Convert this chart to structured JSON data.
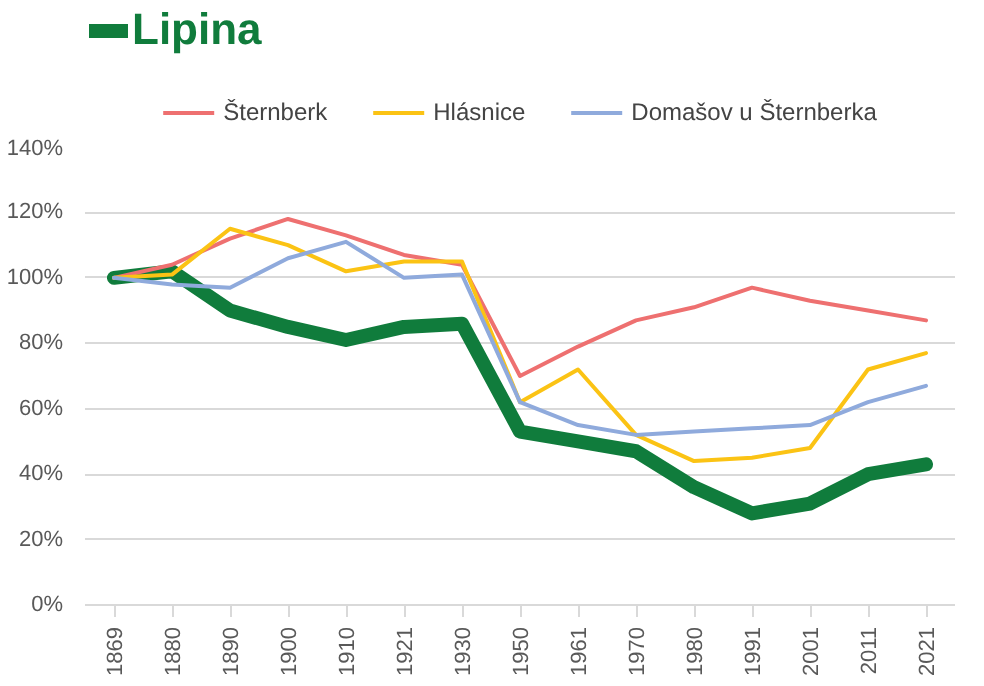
{
  "chart_data": {
    "type": "line",
    "categories": [
      "1869",
      "1880",
      "1890",
      "1900",
      "1910",
      "1921",
      "1930",
      "1950",
      "1961",
      "1970",
      "1980",
      "1991",
      "2001",
      "2011",
      "2021"
    ],
    "series": [
      {
        "name": "Lipina",
        "color": "#107c3c",
        "values": [
          100,
          102,
          90,
          85,
          81,
          85,
          86,
          53,
          50,
          47,
          36,
          28,
          31,
          40,
          43
        ]
      },
      {
        "name": "Šternberk",
        "color": "#ee7070",
        "values": [
          100,
          104,
          112,
          118,
          113,
          107,
          104,
          70,
          79,
          87,
          91,
          97,
          93,
          90,
          87
        ]
      },
      {
        "name": "Hlásnice",
        "color": "#fbc314",
        "values": [
          100,
          101,
          115,
          110,
          102,
          105,
          105,
          62,
          72,
          52,
          44,
          45,
          48,
          72,
          77
        ]
      },
      {
        "name": "Domašov u Šternberka",
        "color": "#8faadc",
        "values": [
          100,
          98,
          97,
          106,
          111,
          100,
          101,
          62,
          55,
          52,
          53,
          54,
          55,
          62,
          67
        ]
      }
    ],
    "ylim": [
      0,
      140
    ],
    "yticks": [
      {
        "value": 0,
        "label": "0%"
      },
      {
        "value": 20,
        "label": "20%"
      },
      {
        "value": 40,
        "label": "40%"
      },
      {
        "value": 60,
        "label": "60%"
      },
      {
        "value": 80,
        "label": "80%"
      },
      {
        "value": 100,
        "label": "100%"
      },
      {
        "value": 120,
        "label": "120%"
      },
      {
        "value": 140,
        "label": "140%"
      }
    ],
    "grid": "y",
    "legend": "top",
    "line_style": "solid",
    "marker": "none"
  }
}
